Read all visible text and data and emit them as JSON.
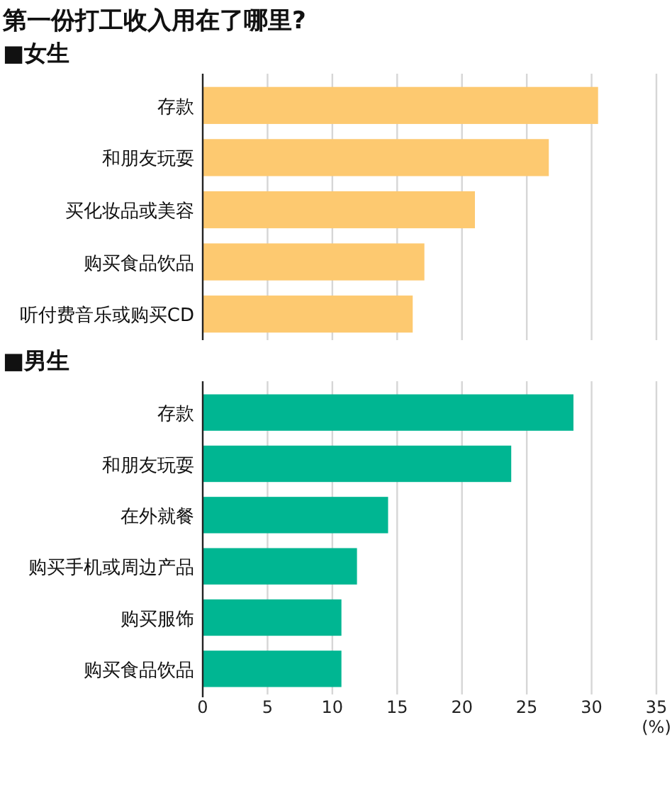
{
  "chart_data": [
    {
      "type": "bar",
      "orientation": "horizontal",
      "title": "第一份打工收入用在了哪里?",
      "subtitle": "■女生",
      "categories": [
        "存款",
        "和朋友玩耍",
        "买化妆品或美容",
        "购买食品饮品",
        "听付费音乐或购买CD"
      ],
      "values": [
        30.5,
        26.7,
        21.0,
        17.1,
        16.2
      ],
      "color": "#fdc970",
      "xlim": [
        0,
        35
      ],
      "xticks": [
        0,
        5,
        10,
        15,
        20,
        25,
        30,
        35
      ],
      "grid": "x",
      "tick_labels": "y"
    },
    {
      "type": "bar",
      "orientation": "horizontal",
      "title": "■男生",
      "xlabel": "(%)",
      "categories": [
        "存款",
        "和朋友玩耍",
        "在外就餐",
        "购买手机或周边产品",
        "购买服饰",
        "购买食品饮品"
      ],
      "values": [
        28.6,
        23.8,
        14.3,
        11.9,
        10.7,
        10.7
      ],
      "color": "#00b692",
      "xlim": [
        0,
        35
      ],
      "xticks": [
        0,
        5,
        10,
        15,
        20,
        25,
        30,
        35
      ],
      "grid": "x"
    }
  ]
}
